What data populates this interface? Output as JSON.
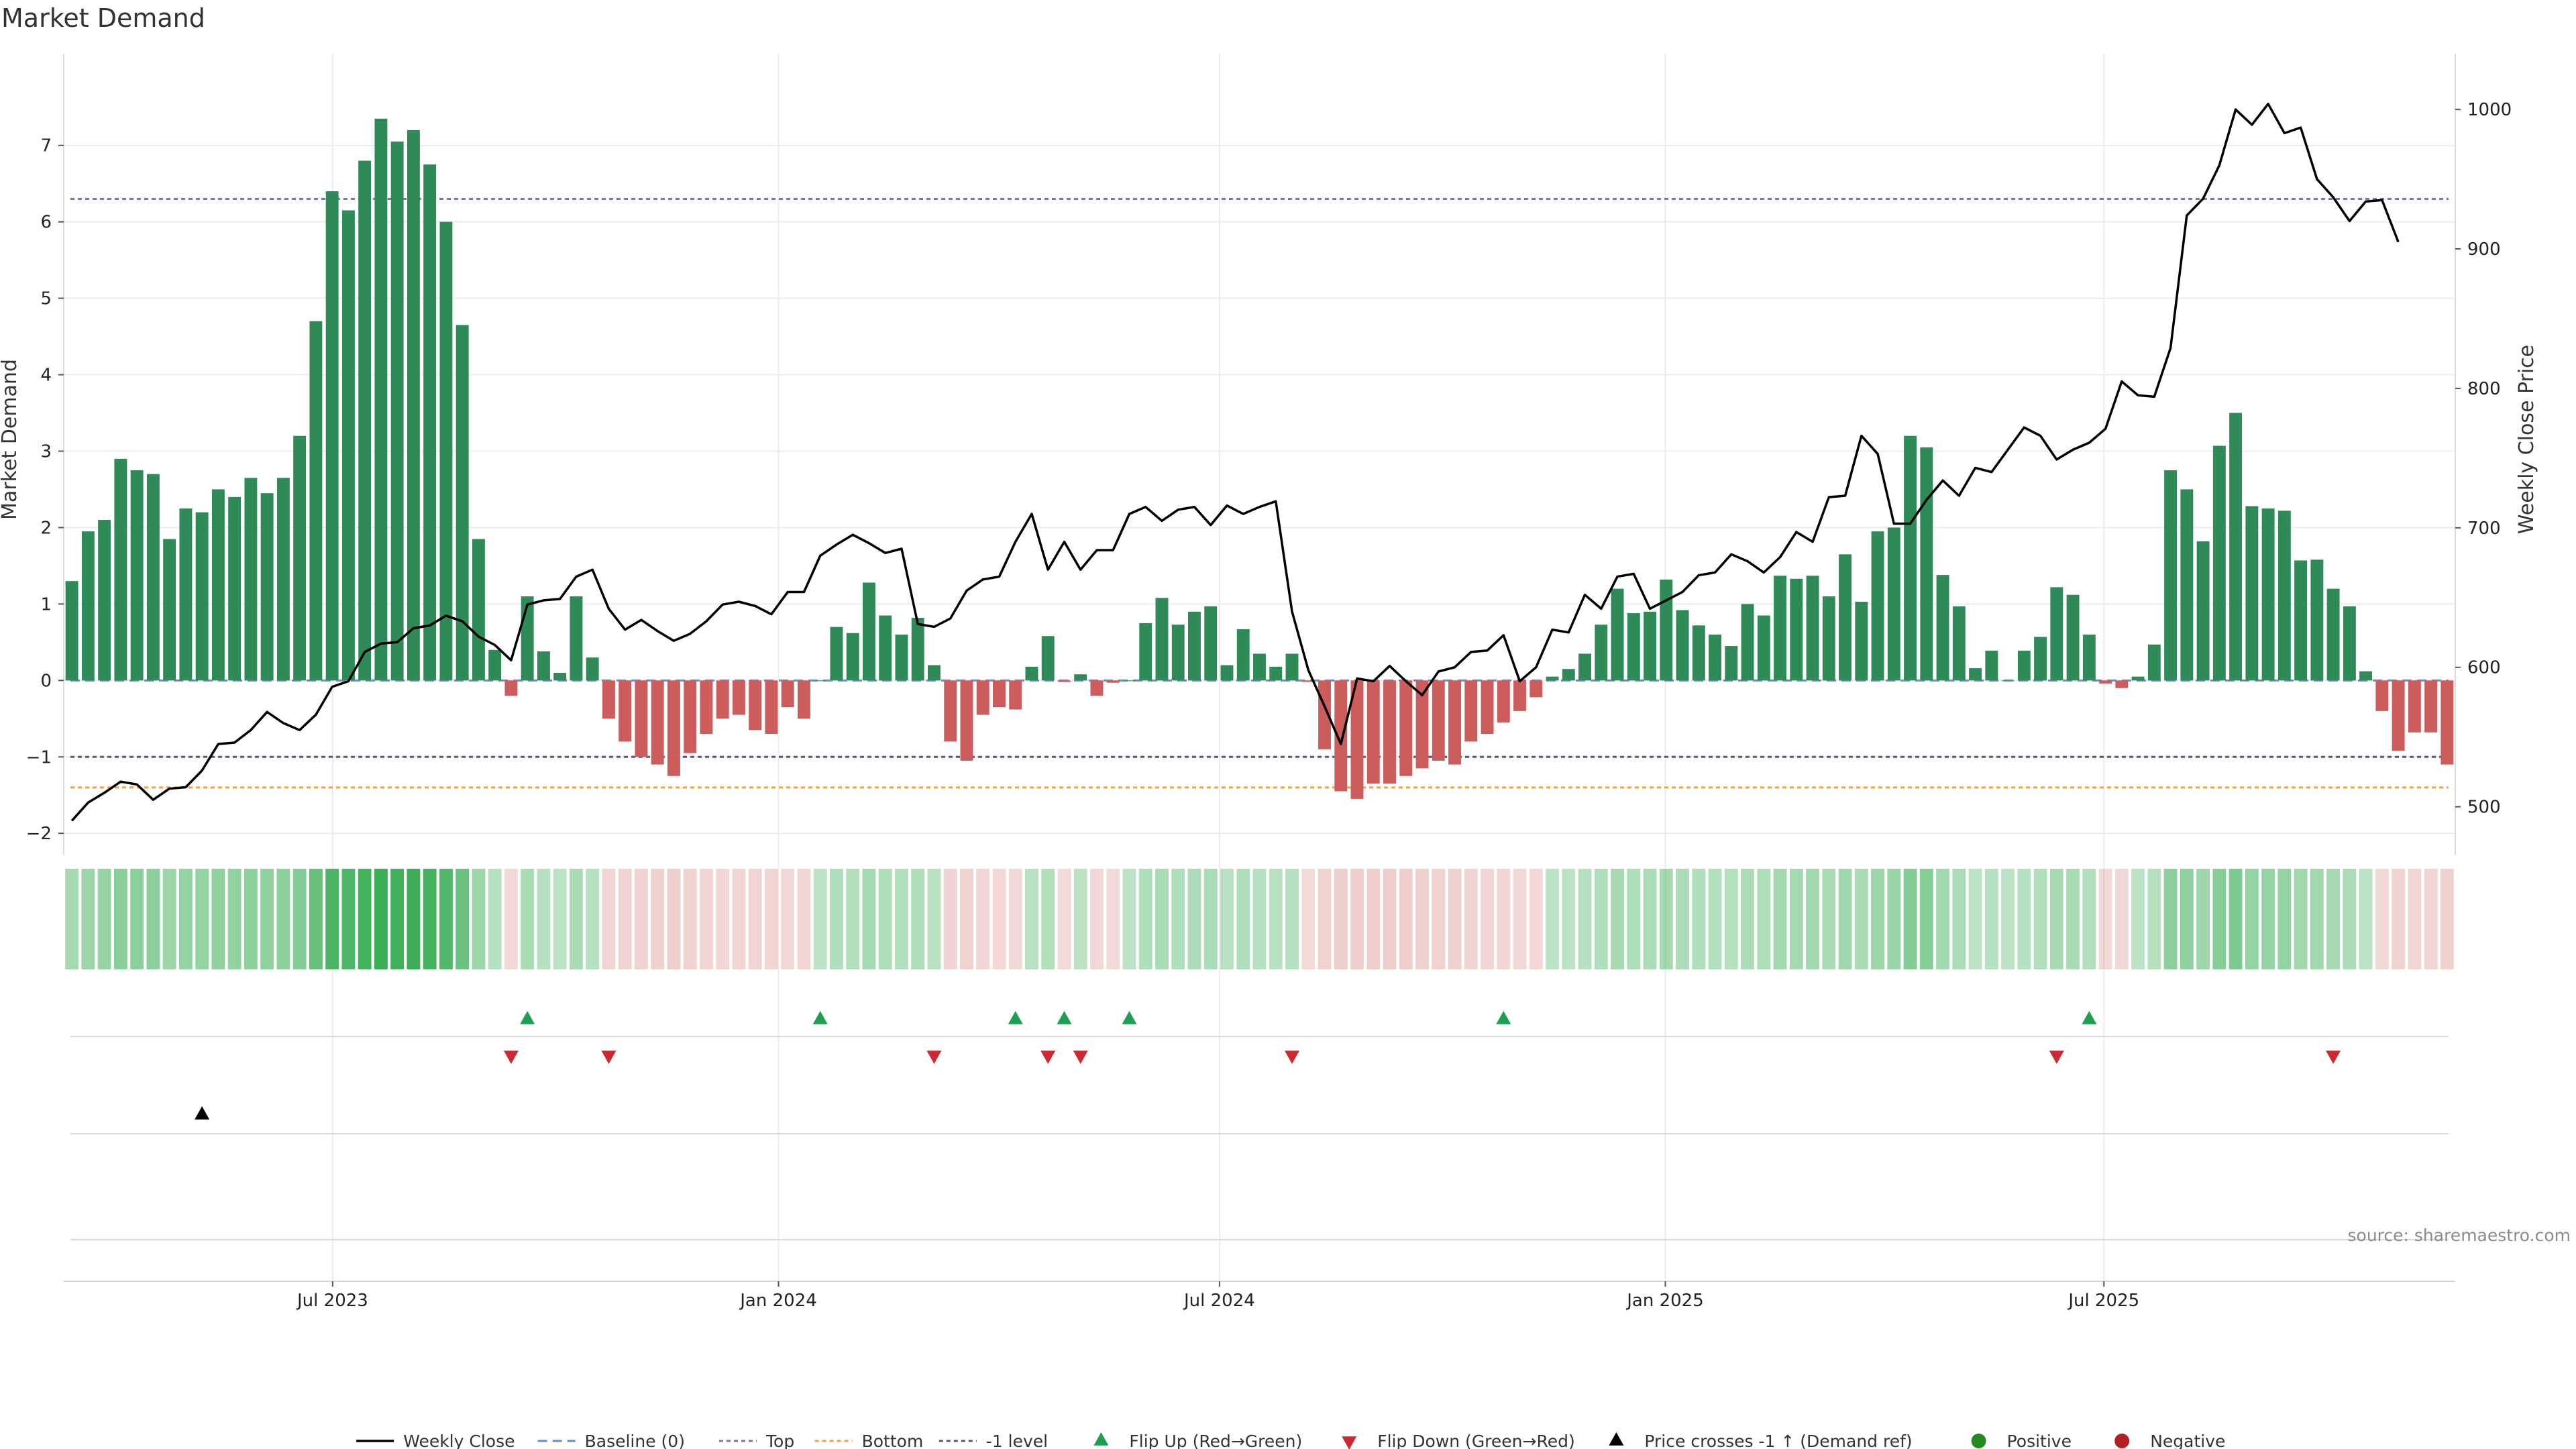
{
  "chart_data": {
    "type": "bar",
    "title": "Market Demand",
    "ylabel": "Market Demand",
    "y2label": "Weekly Close Price",
    "ylim": [
      -2.2,
      8.2
    ],
    "y2lim": [
      470,
      1040
    ],
    "yticks": [
      7,
      6,
      5,
      4,
      3,
      2,
      1,
      0,
      -1,
      -2
    ],
    "ytick_labels": [
      "7",
      "6",
      "5",
      "4",
      "3",
      "2",
      "1",
      "0",
      "−1",
      "−2"
    ],
    "y2ticks": [
      1000,
      900,
      800,
      700,
      600,
      500
    ],
    "y2tick_labels": [
      "1000",
      "900",
      "800",
      "700",
      "600",
      "500"
    ],
    "x_start": "2023-03-12",
    "x_end": "2025-11-23",
    "xticks": [
      "2023-07-01",
      "2024-01-01",
      "2024-07-01",
      "2025-01-01",
      "2025-07-01"
    ],
    "xtick_labels": [
      "Jul 2023",
      "Jan 2024",
      "Jul 2024",
      "Jan 2025",
      "Jul 2025"
    ],
    "reference_lines": [
      {
        "name": "Baseline (0)",
        "value": 0,
        "color": "#5b8fd6",
        "style": "dashed"
      },
      {
        "name": "Top",
        "value": 6.3,
        "color": "#7878b0",
        "style": "dotted"
      },
      {
        "name": "Bottom",
        "value": -1.4,
        "color": "#f5a040",
        "style": "dotted"
      },
      {
        "name": "-1 level",
        "value": -1,
        "color": "#555577",
        "style": "dotted"
      }
    ],
    "series": [
      {
        "name": "Market Demand",
        "values": [
          1.3,
          1.95,
          2.1,
          2.9,
          2.75,
          2.7,
          1.85,
          2.25,
          2.2,
          2.5,
          2.4,
          2.65,
          2.45,
          2.65,
          3.2,
          4.7,
          6.4,
          6.15,
          6.8,
          7.35,
          7.05,
          7.2,
          6.75,
          6.0,
          4.65,
          1.85,
          0.4,
          -0.2,
          1.1,
          0.38,
          0.1,
          1.1,
          0.3,
          -0.5,
          -0.8,
          -1.0,
          -1.1,
          -1.25,
          -0.95,
          -0.7,
          -0.5,
          -0.45,
          -0.65,
          -0.7,
          -0.35,
          -0.5,
          0.0,
          0.7,
          0.62,
          1.28,
          0.85,
          0.6,
          0.82,
          0.2,
          -0.8,
          -1.05,
          -0.45,
          -0.35,
          -0.38,
          0.18,
          0.58,
          -0.02,
          0.08,
          -0.2,
          -0.03,
          0.0,
          0.75,
          1.08,
          0.73,
          0.9,
          0.97,
          0.2,
          0.67,
          0.35,
          0.18,
          0.35,
          -0.02,
          -0.9,
          -1.45,
          -1.55,
          -1.35,
          -1.35,
          -1.25,
          -1.15,
          -1.05,
          -1.1,
          -0.8,
          -0.7,
          -0.55,
          -0.4,
          -0.22,
          0.05,
          0.15,
          0.35,
          0.73,
          1.2,
          0.88,
          0.9,
          1.32,
          0.92,
          0.72,
          0.6,
          0.45,
          1.0,
          0.85,
          1.37,
          1.33,
          1.37,
          1.1,
          1.65,
          1.03,
          1.95,
          2.0,
          3.2,
          3.05,
          1.38,
          0.97,
          0.16,
          0.39,
          0.0,
          0.39,
          0.57,
          1.22,
          1.12,
          0.6,
          -0.04,
          -0.1,
          0.05,
          0.47,
          2.75,
          2.5,
          1.82,
          3.07,
          3.5,
          2.28,
          2.25,
          2.22,
          1.57,
          1.58,
          1.2,
          0.97,
          0.12,
          -0.4,
          -0.92,
          -0.68,
          -0.68,
          -1.1
        ]
      },
      {
        "name": "Weekly Close",
        "values": [
          490,
          503,
          510,
          518,
          516,
          505,
          513,
          514,
          526,
          545,
          546,
          555,
          568,
          560,
          555,
          566,
          586,
          590,
          611,
          617,
          618,
          628,
          630,
          637,
          633,
          622,
          616,
          605,
          645,
          648,
          649,
          665,
          670,
          642,
          627,
          634,
          626,
          619,
          624,
          633,
          645,
          647,
          644,
          638,
          654,
          654,
          680,
          688,
          695,
          689,
          682,
          685,
          631,
          629,
          635,
          655,
          663,
          665,
          690,
          710,
          670,
          690,
          670,
          684,
          684,
          710,
          715,
          705,
          713,
          715,
          702,
          716,
          710,
          715,
          719,
          640,
          598,
          572,
          545,
          592,
          590,
          601,
          590,
          580,
          597,
          600,
          611,
          612,
          623,
          590,
          600,
          627,
          625,
          652,
          642,
          665,
          667,
          642,
          648,
          654,
          666,
          668,
          681,
          676,
          668,
          679,
          697,
          690,
          722,
          723,
          766,
          753,
          703,
          703,
          720,
          734,
          723,
          743,
          740,
          756,
          772,
          766,
          749,
          756,
          761,
          771,
          805,
          795,
          794,
          829,
          924,
          936,
          960,
          1000,
          989,
          1004,
          983,
          987,
          950,
          937,
          920,
          934,
          935,
          905
        ]
      }
    ],
    "flip_up_indices": [
      28,
      46,
      58,
      61,
      65,
      88,
      124
    ],
    "flip_down_indices": [
      27,
      33,
      53,
      60,
      62,
      75,
      122,
      139
    ],
    "price_cross_indices": [
      8
    ],
    "legend_position": "bottom-center",
    "legend": [
      {
        "label": "Weekly Close",
        "kind": "line",
        "color": "#000000"
      },
      {
        "label": "Baseline (0)",
        "kind": "dashed",
        "color": "#5b8fd6"
      },
      {
        "label": "Top",
        "kind": "dotted",
        "color": "#7878b0"
      },
      {
        "label": "Bottom",
        "kind": "dotted",
        "color": "#f5a040"
      },
      {
        "label": "-1 level",
        "kind": "dotted",
        "color": "#555577"
      },
      {
        "label": "Flip Up (Red→Green)",
        "kind": "triangle-up",
        "color": "#1e9e50"
      },
      {
        "label": "Flip Down (Green→Red)",
        "kind": "triangle-down",
        "color": "#cc2a30"
      },
      {
        "label": "Price crosses -1 ↑ (Demand ref)",
        "kind": "triangle-up",
        "color": "#000000"
      },
      {
        "label": "Positive",
        "kind": "dot",
        "color": "#228b22"
      },
      {
        "label": "Negative",
        "kind": "dot",
        "color": "#b22222"
      }
    ],
    "colors": {
      "positive": "#2e8b57",
      "negative": "#cd5c5c",
      "heat_positive": "#2ea84a",
      "heat_negative": "#d27a78",
      "flip_up": "#1e9e50",
      "flip_down": "#cc2a30",
      "price": "#000000",
      "grid": "#ececec"
    },
    "grid": true,
    "source": "source: sharemaestro.com"
  }
}
